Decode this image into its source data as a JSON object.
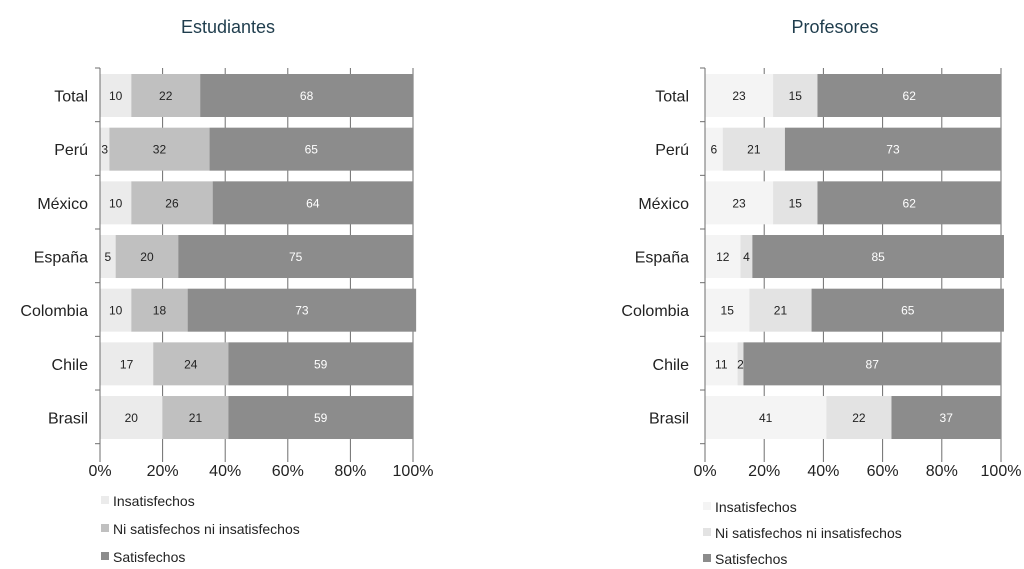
{
  "chart_data": [
    {
      "type": "bar",
      "orientation": "horizontal",
      "stacked": true,
      "title": "Estudiantes",
      "categories": [
        "Total",
        "Perú",
        "México",
        "España",
        "Colombia",
        "Chile",
        "Brasil"
      ],
      "series": [
        {
          "name": "Insatisfechos",
          "values": [
            10,
            3,
            10,
            5,
            10,
            17,
            20
          ]
        },
        {
          "name": "Ni satisfechos ni insatisfechos",
          "values": [
            22,
            32,
            26,
            20,
            18,
            24,
            21
          ]
        },
        {
          "name": "Satisfechos",
          "values": [
            68,
            65,
            64,
            75,
            73,
            59,
            59
          ]
        }
      ],
      "x_ticks": [
        "0%",
        "20%",
        "40%",
        "60%",
        "80%",
        "100%"
      ],
      "xlim": [
        0,
        100
      ],
      "grid": true,
      "legend_position": "bottom-left"
    },
    {
      "type": "bar",
      "orientation": "horizontal",
      "stacked": true,
      "title": "Profesores",
      "categories": [
        "Total",
        "Perú",
        "México",
        "España",
        "Colombia",
        "Chile",
        "Brasil"
      ],
      "series": [
        {
          "name": "Insatisfechos",
          "values": [
            23,
            6,
            23,
            12,
            15,
            11,
            41
          ]
        },
        {
          "name": "Ni satisfechos ni insatisfechos",
          "values": [
            15,
            21,
            15,
            4,
            21,
            2,
            22
          ]
        },
        {
          "name": "Satisfechos",
          "values": [
            62,
            73,
            62,
            85,
            65,
            87,
            37
          ]
        }
      ],
      "x_ticks": [
        "0%",
        "20%",
        "40%",
        "60%",
        "80%",
        "100%"
      ],
      "xlim": [
        0,
        100
      ],
      "grid": true,
      "legend_position": "bottom-left"
    }
  ],
  "style": {
    "colors_left": [
      "#ebebeb",
      "#c0c0c0",
      "#8c8c8c"
    ],
    "colors_right": [
      "#f4f4f4",
      "#e3e3e3",
      "#8c8c8c"
    ],
    "label_colors_left": [
      "#222222",
      "#222222",
      "#ffffff"
    ],
    "label_colors_right": [
      "#222222",
      "#222222",
      "#ffffff"
    ],
    "title_color": "#1f3d4d"
  }
}
